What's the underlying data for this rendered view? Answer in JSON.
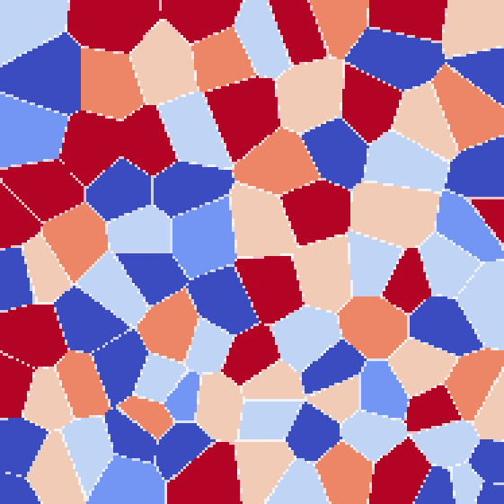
{
  "image": {
    "kind": "phase-field grain structure",
    "palette": {
      "dark_blue": "#3b4cc0",
      "mid_blue": "#7396f5",
      "light_blue": "#c0d4f5",
      "light_peach": "#f2cbb7",
      "salmon": "#ec8667",
      "dark_red": "#b40426",
      "boundary": "#ffffff"
    },
    "background_color": "#3b4cc0",
    "grain_boundary_color": "#ffffff"
  }
}
